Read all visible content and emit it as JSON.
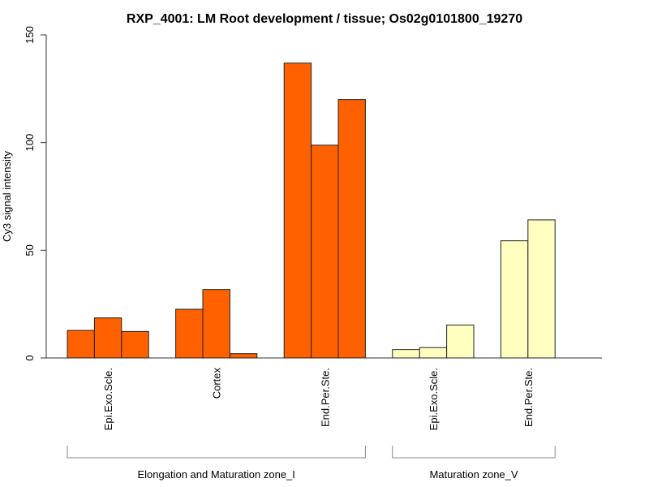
{
  "chart_data": {
    "type": "bar",
    "title": "RXP_4001: LM Root development / tissue; Os02g0101800_19270",
    "xlabel": "",
    "ylabel": "Cy3 signal intensity",
    "ylim": [
      0,
      150
    ],
    "yticks": [
      0,
      50,
      100,
      150
    ],
    "grid": false,
    "legend": "none",
    "groups": [
      {
        "name": "Elongation and Maturation zone_I",
        "color": "#FF6000",
        "tissues": [
          {
            "label": "Epi.Exo.Scle.",
            "values": [
              12.8,
              18.6,
              12.3
            ]
          },
          {
            "label": "Cortex",
            "values": [
              22.6,
              31.8,
              2.0
            ]
          },
          {
            "label": "End.Per.Ste.",
            "values": [
              136.9,
              98.8,
              120.0
            ]
          }
        ]
      },
      {
        "name": "Maturation zone_V",
        "color": "#FFFFC0",
        "tissues": [
          {
            "label": "Epi.Exo.Scle.",
            "values": [
              3.9,
              4.8,
              15.3
            ]
          },
          {
            "label": "End.Per.Ste.",
            "values": [
              54.4,
              64.1
            ]
          }
        ]
      }
    ]
  }
}
